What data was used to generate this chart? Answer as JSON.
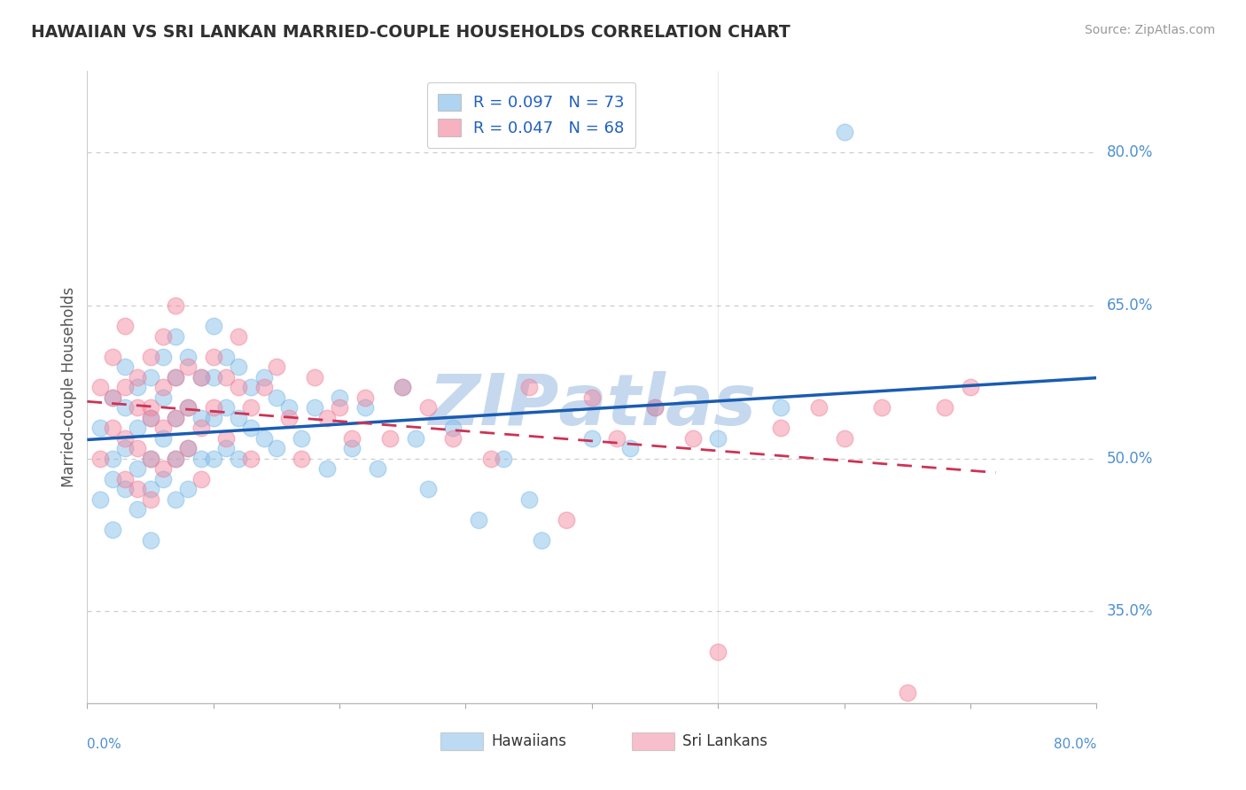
{
  "title": "HAWAIIAN VS SRI LANKAN MARRIED-COUPLE HOUSEHOLDS CORRELATION CHART",
  "source": "Source: ZipAtlas.com",
  "ylabel": "Married-couple Households",
  "y_tick_labels": [
    "80.0%",
    "65.0%",
    "50.0%",
    "35.0%"
  ],
  "y_tick_values": [
    0.8,
    0.65,
    0.5,
    0.35
  ],
  "xlim": [
    0.0,
    0.8
  ],
  "ylim": [
    0.26,
    0.88
  ],
  "legend_label_haw": "R = 0.097   N = 73",
  "legend_label_sri": "R = 0.047   N = 68",
  "hawaiian_color": "#7ab8e8",
  "srilanka_color": "#f08098",
  "trend_hawaiian_color": "#1a5cb0",
  "trend_srilanka_color": "#cc3355",
  "background_color": "#ffffff",
  "grid_color": "#cccccc",
  "title_color": "#404040",
  "axis_color": "#5090d0",
  "watermark_color": "#c5d8ee",
  "hawaiians_label": "Hawaiians",
  "srilankans_label": "Sri Lankans",
  "hawaiian_R": 0.097,
  "srilanka_R": 0.047,
  "haw_x": [
    0.01,
    0.01,
    0.02,
    0.02,
    0.02,
    0.02,
    0.03,
    0.03,
    0.03,
    0.03,
    0.04,
    0.04,
    0.04,
    0.04,
    0.05,
    0.05,
    0.05,
    0.05,
    0.05,
    0.06,
    0.06,
    0.06,
    0.06,
    0.07,
    0.07,
    0.07,
    0.07,
    0.07,
    0.08,
    0.08,
    0.08,
    0.08,
    0.09,
    0.09,
    0.09,
    0.1,
    0.1,
    0.1,
    0.1,
    0.11,
    0.11,
    0.11,
    0.12,
    0.12,
    0.12,
    0.13,
    0.13,
    0.14,
    0.14,
    0.15,
    0.15,
    0.16,
    0.17,
    0.18,
    0.19,
    0.2,
    0.21,
    0.22,
    0.23,
    0.25,
    0.26,
    0.27,
    0.29,
    0.31,
    0.33,
    0.35,
    0.36,
    0.4,
    0.43,
    0.45,
    0.5,
    0.55,
    0.6
  ],
  "haw_y": [
    0.46,
    0.53,
    0.5,
    0.56,
    0.48,
    0.43,
    0.55,
    0.51,
    0.47,
    0.59,
    0.53,
    0.49,
    0.57,
    0.45,
    0.58,
    0.54,
    0.5,
    0.47,
    0.42,
    0.6,
    0.56,
    0.52,
    0.48,
    0.62,
    0.58,
    0.54,
    0.5,
    0.46,
    0.6,
    0.55,
    0.51,
    0.47,
    0.58,
    0.54,
    0.5,
    0.63,
    0.58,
    0.54,
    0.5,
    0.6,
    0.55,
    0.51,
    0.59,
    0.54,
    0.5,
    0.57,
    0.53,
    0.58,
    0.52,
    0.56,
    0.51,
    0.55,
    0.52,
    0.55,
    0.49,
    0.56,
    0.51,
    0.55,
    0.49,
    0.57,
    0.52,
    0.47,
    0.53,
    0.44,
    0.5,
    0.46,
    0.42,
    0.52,
    0.51,
    0.55,
    0.52,
    0.55,
    0.82
  ],
  "sri_x": [
    0.01,
    0.01,
    0.02,
    0.02,
    0.02,
    0.03,
    0.03,
    0.03,
    0.03,
    0.04,
    0.04,
    0.04,
    0.04,
    0.05,
    0.05,
    0.05,
    0.05,
    0.05,
    0.06,
    0.06,
    0.06,
    0.06,
    0.07,
    0.07,
    0.07,
    0.07,
    0.08,
    0.08,
    0.08,
    0.09,
    0.09,
    0.09,
    0.1,
    0.1,
    0.11,
    0.11,
    0.12,
    0.12,
    0.13,
    0.13,
    0.14,
    0.15,
    0.16,
    0.17,
    0.18,
    0.19,
    0.2,
    0.21,
    0.22,
    0.24,
    0.25,
    0.27,
    0.29,
    0.32,
    0.35,
    0.38,
    0.4,
    0.42,
    0.45,
    0.48,
    0.5,
    0.55,
    0.58,
    0.6,
    0.63,
    0.65,
    0.68,
    0.7
  ],
  "sri_y": [
    0.5,
    0.57,
    0.53,
    0.6,
    0.56,
    0.52,
    0.57,
    0.48,
    0.63,
    0.55,
    0.51,
    0.47,
    0.58,
    0.54,
    0.5,
    0.46,
    0.6,
    0.55,
    0.57,
    0.53,
    0.49,
    0.62,
    0.58,
    0.54,
    0.5,
    0.65,
    0.59,
    0.55,
    0.51,
    0.58,
    0.53,
    0.48,
    0.6,
    0.55,
    0.58,
    0.52,
    0.62,
    0.57,
    0.55,
    0.5,
    0.57,
    0.59,
    0.54,
    0.5,
    0.58,
    0.54,
    0.55,
    0.52,
    0.56,
    0.52,
    0.57,
    0.55,
    0.52,
    0.5,
    0.57,
    0.44,
    0.56,
    0.52,
    0.55,
    0.52,
    0.31,
    0.53,
    0.55,
    0.52,
    0.55,
    0.27,
    0.55,
    0.57
  ]
}
